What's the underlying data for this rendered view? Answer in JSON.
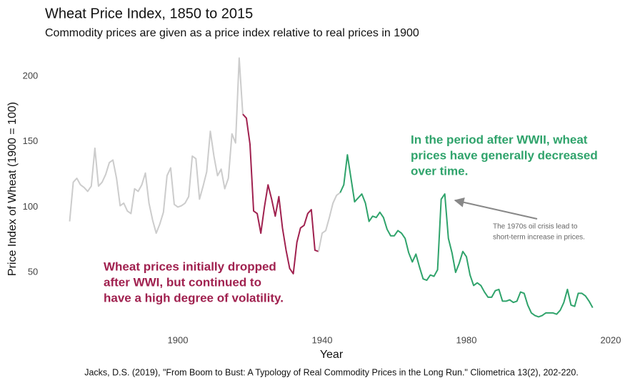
{
  "chart_data": {
    "type": "line",
    "title": "Wheat Price Index, 1850 to 2015",
    "subtitle": "Commodity prices are given as a price index relative to real prices in 1900",
    "x_label": "Year",
    "y_label": "Price Index of Wheat (1900 = 100)",
    "source": "Jacks, D.S. (2019), \"From Boom to Bust: A Typology of Real Commodity Prices in the Long Run.\" Cliometrica 13(2), 202-220.",
    "xlim": [
      1866,
      2020
    ],
    "ylim": [
      7,
      220
    ],
    "xticks": [
      1900,
      1940,
      1980,
      2020
    ],
    "yticks": [
      50,
      100,
      150,
      200
    ],
    "grid": false,
    "series": [
      {
        "color": "#cccccc",
        "x": [
          1870,
          1871,
          1872,
          1873,
          1874,
          1875,
          1876,
          1877,
          1878,
          1879,
          1880,
          1881,
          1882,
          1883,
          1884,
          1885,
          1886,
          1887,
          1888,
          1889,
          1890,
          1891,
          1892,
          1893,
          1894,
          1895,
          1896,
          1897,
          1898,
          1899,
          1900,
          1901,
          1902,
          1903,
          1904,
          1905,
          1906,
          1907,
          1908,
          1909,
          1910,
          1911,
          1912,
          1913,
          1914,
          1915,
          1916,
          1917,
          1918
        ],
        "values": [
          89,
          119,
          122,
          117,
          115,
          112,
          116,
          145,
          116,
          119,
          125,
          134,
          136,
          122,
          101,
          103,
          97,
          95,
          114,
          112,
          117,
          126,
          103,
          90,
          80,
          87,
          96,
          124,
          130,
          102,
          100,
          101,
          103,
          108,
          139,
          137,
          106,
          116,
          127,
          158,
          139,
          124,
          129,
          114,
          122,
          156,
          149,
          214,
          171
        ]
      },
      {
        "color": "#a0214f",
        "x": [
          1918,
          1919,
          1920,
          1921,
          1922,
          1923,
          1924,
          1925,
          1926,
          1927,
          1928,
          1929,
          1930,
          1931,
          1932,
          1933,
          1934,
          1935,
          1936,
          1937,
          1938,
          1939
        ],
        "values": [
          171,
          168,
          148,
          97,
          95,
          80,
          100,
          117,
          106,
          93,
          108,
          84,
          67,
          53,
          49,
          73,
          84,
          86,
          95,
          98,
          67,
          66
        ]
      },
      {
        "color": "#cccccc",
        "x": [
          1939,
          1940,
          1941,
          1942,
          1943,
          1944,
          1945
        ],
        "values": [
          66,
          80,
          82,
          92,
          103,
          109,
          111
        ]
      },
      {
        "color": "#2fa36b",
        "x": [
          1945,
          1946,
          1947,
          1948,
          1949,
          1950,
          1951,
          1952,
          1953,
          1954,
          1955,
          1956,
          1957,
          1958,
          1959,
          1960,
          1961,
          1962,
          1963,
          1964,
          1965,
          1966,
          1967,
          1968,
          1969,
          1970,
          1971,
          1972,
          1973,
          1974,
          1975,
          1976,
          1977,
          1978,
          1979,
          1980,
          1981,
          1982,
          1983,
          1984,
          1985,
          1986,
          1987,
          1988,
          1989,
          1990,
          1991,
          1992,
          1993,
          1994,
          1995,
          1996,
          1997,
          1998,
          1999,
          2000,
          2001,
          2002,
          2003,
          2004,
          2005,
          2006,
          2007,
          2008,
          2009,
          2010,
          2011,
          2012,
          2013,
          2014,
          2015
        ],
        "values": [
          111,
          117,
          140,
          122,
          104,
          107,
          110,
          103,
          89,
          93,
          92,
          96,
          92,
          83,
          78,
          78,
          82,
          80,
          76,
          65,
          58,
          64,
          54,
          45,
          44,
          48,
          47,
          52,
          106,
          110,
          76,
          65,
          50,
          57,
          66,
          62,
          48,
          40,
          42,
          40,
          35,
          31,
          31,
          36,
          37,
          28,
          28,
          29,
          27,
          28,
          35,
          34,
          25,
          19,
          17,
          16,
          17,
          19,
          19,
          19,
          18,
          21,
          27,
          37,
          25,
          24,
          34,
          34,
          32,
          28,
          23
        ]
      }
    ],
    "annotations": [
      [
        "Wheat prices initially dropped",
        "after WWI, but continued to",
        "have a high degree of volatility."
      ],
      [
        "In the period after WWII, wheat",
        "prices have generally decreased",
        "over time."
      ],
      [
        "The 1970s oil crisis lead to",
        "short-term increase in prices."
      ]
    ]
  }
}
